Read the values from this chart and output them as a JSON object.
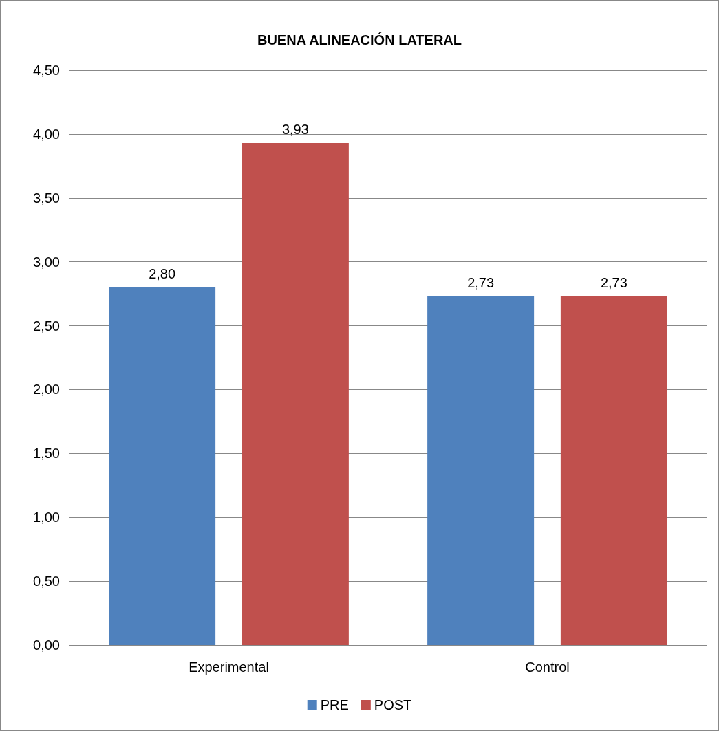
{
  "chart_data": {
    "type": "bar",
    "title": "BUENA ALINEACIÓN LATERAL",
    "categories": [
      "Experimental",
      "Control"
    ],
    "series": [
      {
        "name": "PRE",
        "color": "#4f81bd",
        "values": [
          2.8,
          2.73
        ],
        "value_labels": [
          "2,80",
          "2,73"
        ]
      },
      {
        "name": "POST",
        "color": "#c0504d",
        "values": [
          3.93,
          2.73
        ],
        "value_labels": [
          "3,93",
          "2,73"
        ]
      }
    ],
    "ylim": [
      0,
      4.5
    ],
    "yticks": [
      {
        "value": 0,
        "label": "0,00"
      },
      {
        "value": 0.5,
        "label": "0,50"
      },
      {
        "value": 1,
        "label": "1,00"
      },
      {
        "value": 1.5,
        "label": "1,50"
      },
      {
        "value": 2,
        "label": "2,00"
      },
      {
        "value": 2.5,
        "label": "2,50"
      },
      {
        "value": 3,
        "label": "3,00"
      },
      {
        "value": 3.5,
        "label": "3,50"
      },
      {
        "value": 4,
        "label": "4,00"
      },
      {
        "value": 4.5,
        "label": "4,50"
      }
    ],
    "grid": "y",
    "legend": "bottom"
  }
}
